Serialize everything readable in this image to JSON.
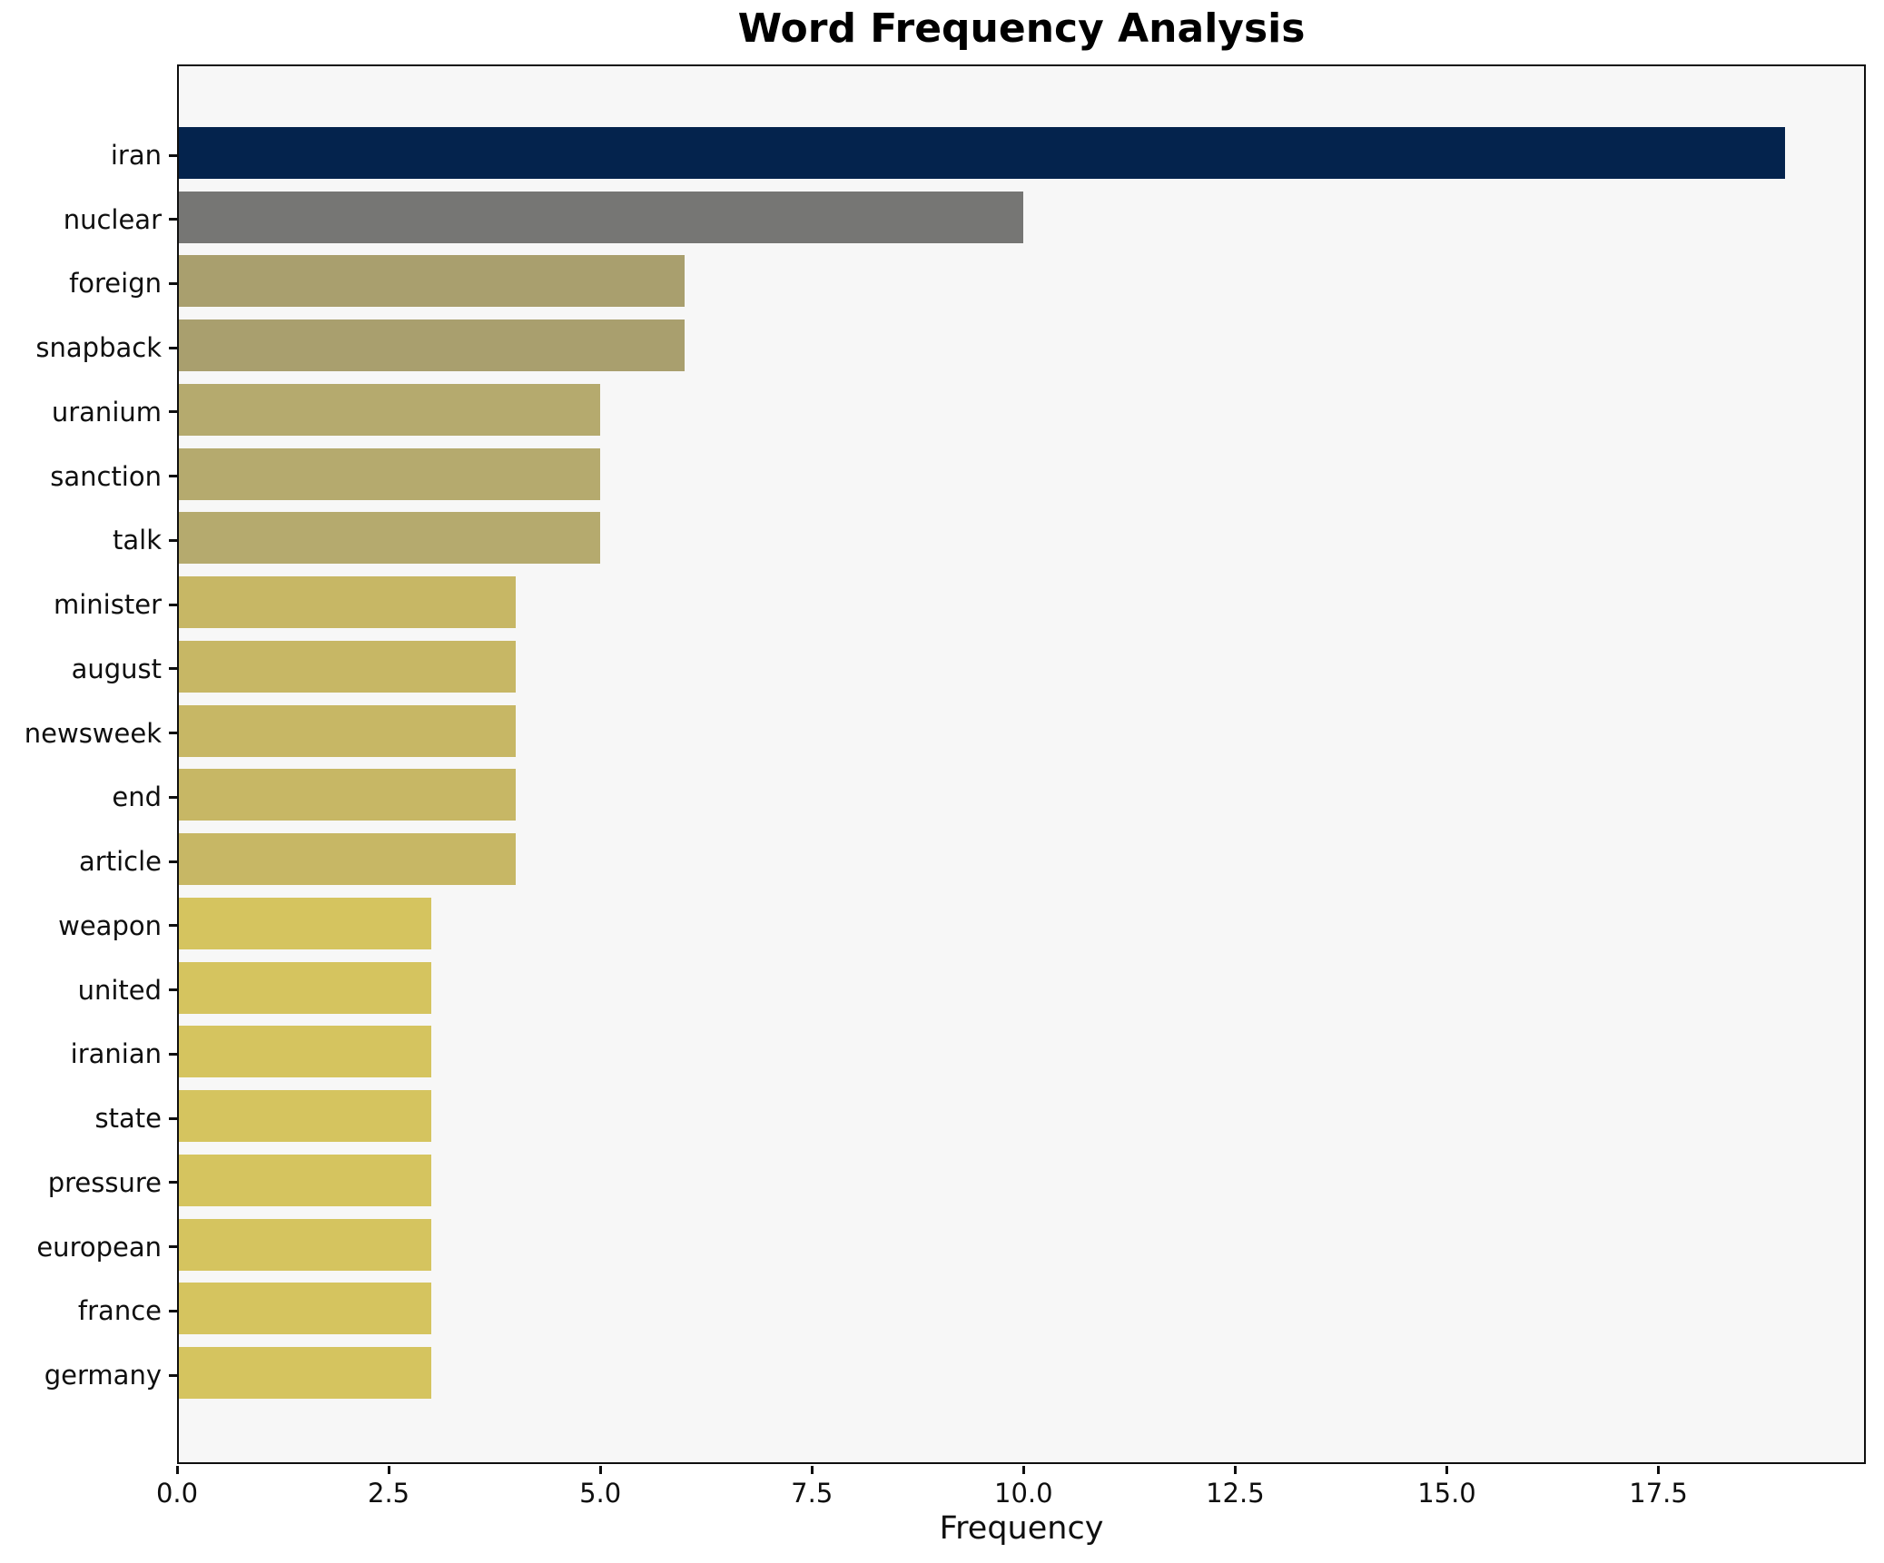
{
  "chart_data": {
    "type": "bar",
    "orientation": "horizontal",
    "title": "Word Frequency Analysis",
    "xlabel": "Frequency",
    "ylabel": "",
    "categories": [
      "iran",
      "nuclear",
      "foreign",
      "snapback",
      "uranium",
      "sanction",
      "talk",
      "minister",
      "august",
      "newsweek",
      "end",
      "article",
      "weapon",
      "united",
      "iranian",
      "state",
      "pressure",
      "european",
      "france",
      "germany"
    ],
    "values": [
      19,
      10,
      6,
      6,
      5,
      5,
      5,
      4,
      4,
      4,
      4,
      4,
      3,
      3,
      3,
      3,
      3,
      3,
      3,
      3
    ],
    "bar_colors": [
      "#04234d",
      "#767674",
      "#a99f6e",
      "#a99f6e",
      "#b5aa6e",
      "#b5aa6e",
      "#b5aa6e",
      "#c7b765",
      "#c7b765",
      "#c7b765",
      "#c7b765",
      "#c7b765",
      "#d5c45f",
      "#d5c45f",
      "#d5c45f",
      "#d5c45f",
      "#d5c45f",
      "#d5c45f",
      "#d5c45f",
      "#d5c45f"
    ],
    "xlim": [
      0,
      19.95
    ],
    "xtick_values": [
      0,
      2.5,
      5,
      7.5,
      10,
      12.5,
      15,
      17.5
    ],
    "xtick_labels": [
      "0.0",
      "2.5",
      "5.0",
      "7.5",
      "10.0",
      "12.5",
      "15.0",
      "17.5"
    ],
    "grid": false,
    "legend": null,
    "plot_background": "#f7f7f7",
    "figure_background": "#ffffff",
    "bar_height_frac": 0.8
  }
}
